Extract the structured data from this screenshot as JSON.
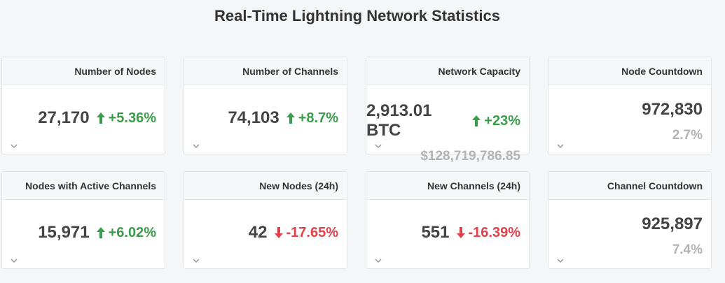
{
  "title": "Real-Time Lightning Network Statistics",
  "colors": {
    "up": "#3a9d4a",
    "down": "#e0414a",
    "muted": "#b3b3b3"
  },
  "cards": {
    "nodes": {
      "label": "Number of Nodes",
      "value": "27,170",
      "change": "+5.36%",
      "direction": "up"
    },
    "channels": {
      "label": "Number of Channels",
      "value": "74,103",
      "change": "+8.7%",
      "direction": "up"
    },
    "capacity": {
      "label": "Network Capacity",
      "value": "2,913.01 BTC",
      "change": "+23%",
      "direction": "up",
      "usd": "$128,719,786.85"
    },
    "node_countdown": {
      "label": "Node Countdown",
      "value": "972,830",
      "percent": "2.7%"
    },
    "active": {
      "label": "Nodes with Active Channels",
      "value": "15,971",
      "change": "+6.02%",
      "direction": "up"
    },
    "new_nodes": {
      "label": "New Nodes (24h)",
      "value": "42",
      "change": "-17.65%",
      "direction": "down"
    },
    "new_channels": {
      "label": "New Channels (24h)",
      "value": "551",
      "change": "-16.39%",
      "direction": "down"
    },
    "channel_countdown": {
      "label": "Channel Countdown",
      "value": "925,897",
      "percent": "7.4%"
    }
  },
  "icons": {
    "up": "arrow-up-icon",
    "down": "arrow-down-icon",
    "expand": "chevron-down-icon"
  }
}
